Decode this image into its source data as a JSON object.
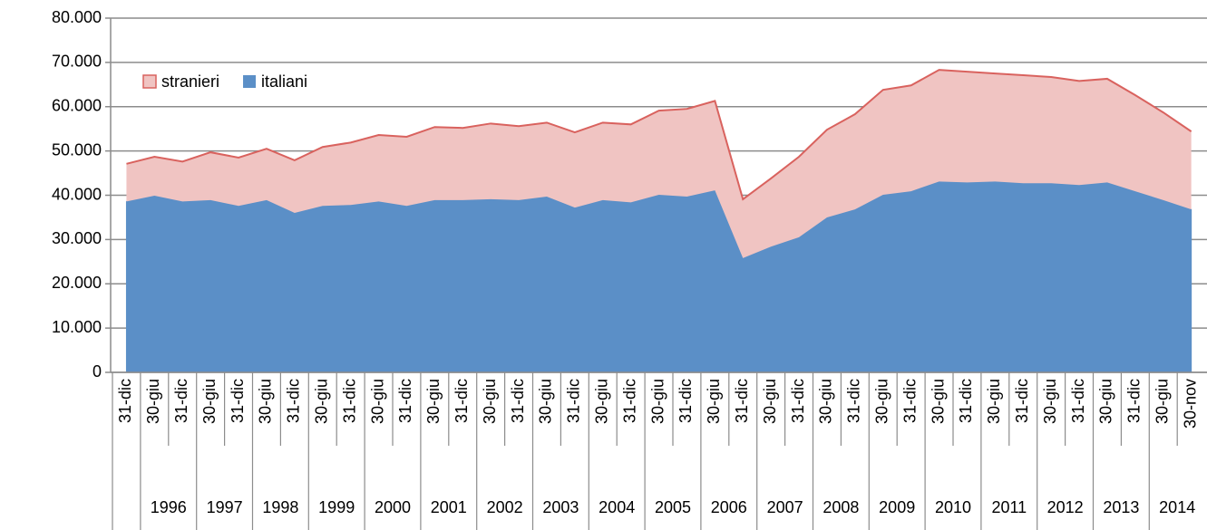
{
  "chart_data": {
    "type": "stacked-area",
    "categories": [
      "31-dic",
      "30-giu",
      "31-dic",
      "30-giu",
      "31-dic",
      "30-giu",
      "31-dic",
      "30-giu",
      "31-dic",
      "30-giu",
      "31-dic",
      "30-giu",
      "31-dic",
      "30-giu",
      "31-dic",
      "30-giu",
      "31-dic",
      "30-giu",
      "31-dic",
      "30-giu",
      "31-dic",
      "30-giu",
      "31-dic",
      "30-giu",
      "31-dic",
      "30-giu",
      "31-dic",
      "30-giu",
      "31-dic",
      "30-giu",
      "31-dic",
      "30-giu",
      "31-dic",
      "30-giu",
      "31-dic",
      "30-giu",
      "31-dic",
      "30-giu",
      "30-nov"
    ],
    "groups": [
      "1996",
      "1997",
      "1998",
      "1999",
      "2000",
      "2001",
      "2002",
      "2003",
      "2004",
      "2005",
      "2006",
      "2007",
      "2008",
      "2009",
      "2010",
      "2011",
      "2012",
      "2013",
      "2014"
    ],
    "series": [
      {
        "name": "italiani",
        "color": "#5b8fc7",
        "values": [
          38600,
          39900,
          38600,
          38900,
          37600,
          38900,
          36000,
          37600,
          37800,
          38600,
          37600,
          38900,
          38900,
          39100,
          38900,
          39700,
          37200,
          38900,
          38400,
          40100,
          39700,
          41100,
          25800,
          28400,
          30500,
          35000,
          36800,
          40100,
          40900,
          43100,
          42900,
          43100,
          42700,
          42700,
          42300,
          42900,
          40900,
          38900,
          36800
        ]
      },
      {
        "name": "stranieri",
        "color": "#f0c4c2",
        "line_color": "#d9625e",
        "values": [
          8500,
          8800,
          9000,
          10800,
          10900,
          11600,
          11900,
          13300,
          14100,
          15000,
          15600,
          16500,
          16300,
          17100,
          16700,
          16700,
          17000,
          17500,
          17600,
          19000,
          19800,
          20200,
          13300,
          15400,
          18200,
          19800,
          21500,
          23700,
          23900,
          25200,
          25000,
          24400,
          24400,
          24000,
          23500,
          23400,
          21700,
          19800,
          17600
        ]
      }
    ],
    "ylim": [
      0,
      80000
    ],
    "yticks": [
      0,
      {
        "value": 10000,
        "label": "10.000"
      },
      {
        "value": 20000,
        "label": "20.000"
      },
      {
        "value": 30000,
        "label": "30.000"
      },
      {
        "value": 40000,
        "label": "40.000"
      },
      {
        "value": 50000,
        "label": "50.000"
      },
      {
        "value": 60000,
        "label": "60.000"
      },
      {
        "value": 70000,
        "label": "70.000"
      },
      {
        "value": 80000,
        "label": "80.000"
      }
    ],
    "grid": true
  }
}
